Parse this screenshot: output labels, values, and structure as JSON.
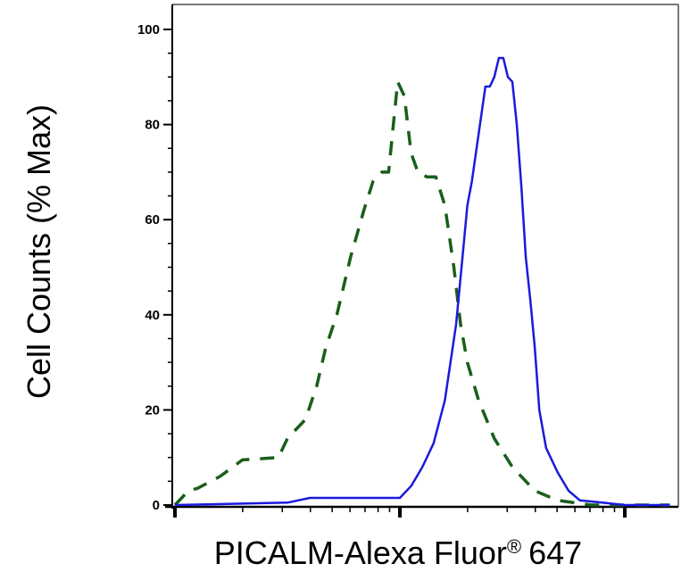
{
  "chart_data": {
    "type": "line",
    "title": "",
    "xlabel": "PICALM-Alexa Fluor",
    "xlabel_symbol": "®",
    "xlabel_suffix": "647",
    "ylabel": "Cell Counts (% Max)",
    "xscale": "log",
    "xlim": [
      1,
      3.2
    ],
    "ylim": [
      0,
      105
    ],
    "yticks": [
      0,
      20,
      40,
      60,
      80,
      100
    ],
    "ytick_labels": [
      "0",
      "20",
      "40",
      "60",
      "80",
      "100"
    ],
    "grid": false,
    "legend": "none",
    "series": [
      {
        "style": "dashed",
        "color": "#1a5e1a",
        "x": [
          1.0,
          1.06,
          1.1,
          1.2,
          1.3,
          1.46,
          1.5,
          1.58,
          1.63,
          1.67,
          1.72,
          1.78,
          1.84,
          1.88,
          1.92,
          1.95,
          1.99,
          2.02,
          2.05,
          2.08,
          2.12,
          2.16,
          2.2,
          2.24,
          2.27,
          2.3,
          2.35,
          2.42,
          2.5,
          2.6,
          2.7,
          2.85,
          3.0,
          3.2
        ],
        "y": [
          0,
          3,
          3.5,
          6,
          9.5,
          10,
          14,
          18,
          25,
          33,
          40,
          52,
          62,
          68,
          70,
          70,
          89,
          86,
          74,
          70,
          69,
          69,
          63,
          50,
          38,
          30,
          22,
          14,
          8,
          3,
          1,
          0,
          0,
          0
        ]
      },
      {
        "style": "solid",
        "color": "#1a1adc",
        "x": [
          1.0,
          1.5,
          1.6,
          1.7,
          1.75,
          1.8,
          1.9,
          2.0,
          2.05,
          2.1,
          2.15,
          2.2,
          2.25,
          2.28,
          2.3,
          2.32,
          2.35,
          2.38,
          2.4,
          2.42,
          2.44,
          2.46,
          2.48,
          2.5,
          2.52,
          2.54,
          2.56,
          2.58,
          2.6,
          2.62,
          2.65,
          2.7,
          2.75,
          2.8,
          2.9,
          3.0,
          3.2
        ],
        "y": [
          0,
          0.5,
          1.5,
          1.5,
          1.5,
          1.5,
          1.5,
          1.5,
          4,
          8,
          13,
          22,
          38,
          53,
          63,
          68,
          78,
          88,
          88,
          90,
          94,
          94,
          90,
          89,
          80,
          67,
          52,
          43,
          33,
          20,
          12,
          7,
          3,
          1,
          0.5,
          0,
          0
        ]
      }
    ]
  }
}
